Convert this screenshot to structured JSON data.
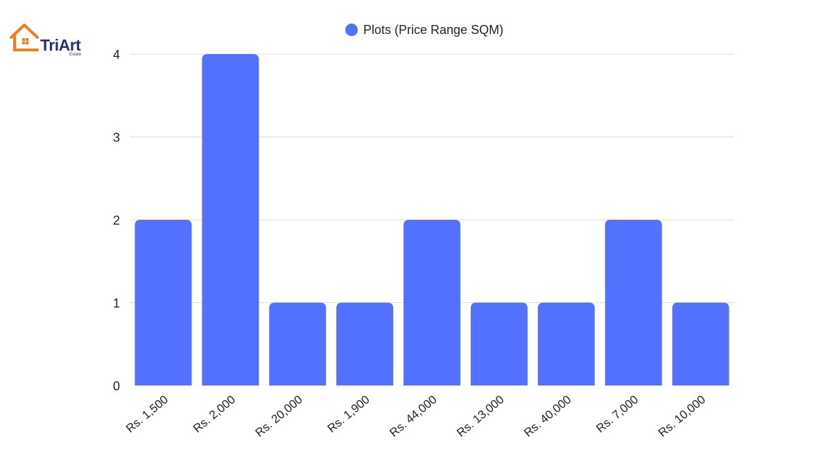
{
  "brand": {
    "name": "TriArt",
    "tagline": "Estate",
    "colors": {
      "house": "#f07c1f",
      "text": "#2a2f6e"
    }
  },
  "chart_data": {
    "type": "bar",
    "title": "",
    "xlabel": "",
    "ylabel": "",
    "categories": [
      "Rs. 1,500",
      "Rs. 2,000",
      "Rs. 20,000",
      "Rs. 1,900",
      "Rs. 44,000",
      "Rs. 13,000",
      "Rs. 40,000",
      "Rs. 7,000",
      "Rs. 10,000"
    ],
    "series": [
      {
        "name": "Plots (Price Range SQM)",
        "values": [
          2,
          4,
          1,
          1,
          2,
          1,
          1,
          2,
          1
        ],
        "color": "#5271ff"
      }
    ],
    "ylim": [
      0,
      4
    ],
    "yticks": [
      0,
      1,
      2,
      3,
      4
    ],
    "grid": true,
    "legend": "top-center"
  }
}
